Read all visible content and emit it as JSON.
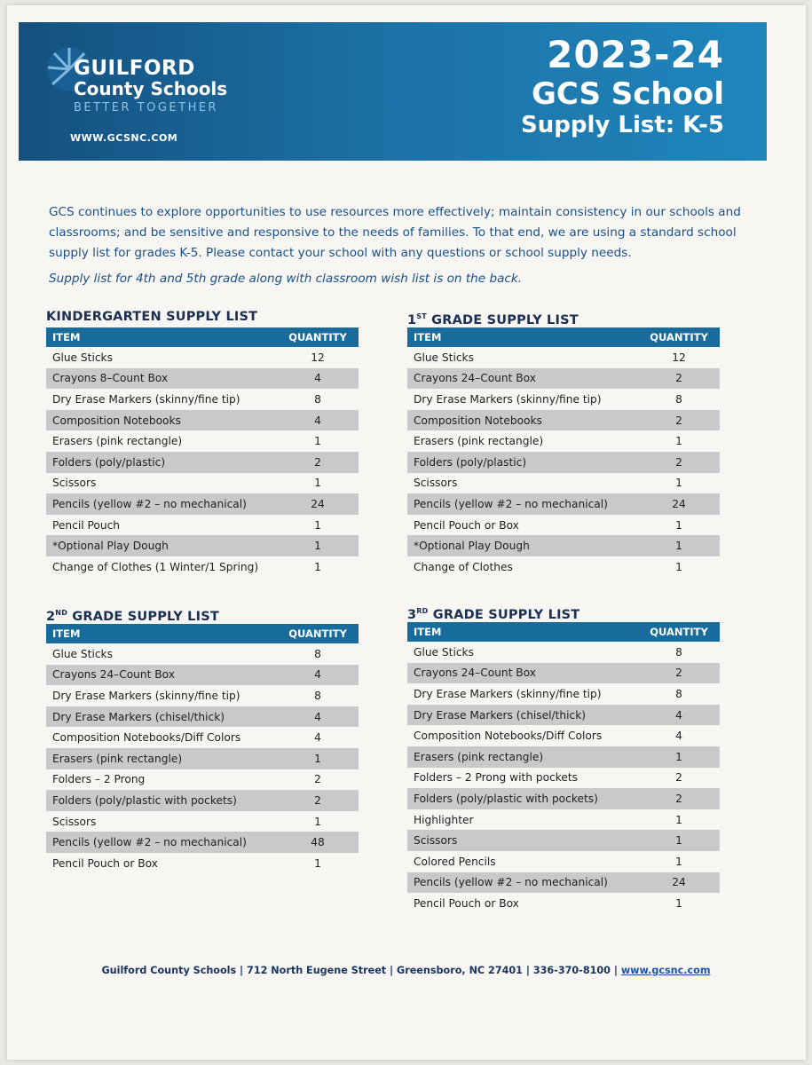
{
  "header": {
    "logo_line1": "GUILFORD",
    "logo_line2": "County Schools",
    "logo_tagline": "BETTER TOGETHER",
    "website": "WWW.GCSNC.COM",
    "title_line1": "2023-24",
    "title_line2": "GCS School",
    "title_line3": "Supply List: K-5",
    "brand_color": "#1c6fa3"
  },
  "intro_text": "GCS continues to explore opportunities to use resources more effectively; maintain consistency in our schools and classrooms; and be sensitive and responsive to the needs of families. To that end, we are using a standard school supply list for grades K-5.  Please contact your school with any questions or school supply needs.",
  "intro_note": "Supply list for 4th and 5th grade along with classroom wish list is on the back.",
  "col_item": "ITEM",
  "col_quantity": "QUANTITY",
  "lists": [
    {
      "title": "KINDERGARTEN SUPPLY LIST",
      "rows": [
        {
          "item": "Glue Sticks",
          "qty": "12"
        },
        {
          "item": "Crayons 8–Count Box",
          "qty": "4"
        },
        {
          "item": "Dry Erase Markers (skinny/fine tip)",
          "qty": "8"
        },
        {
          "item": "Composition Notebooks",
          "qty": "4"
        },
        {
          "item": "Erasers (pink rectangle)",
          "qty": "1"
        },
        {
          "item": "Folders (poly/plastic)",
          "qty": "2"
        },
        {
          "item": "Scissors",
          "qty": "1"
        },
        {
          "item": "Pencils (yellow #2 – no mechanical)",
          "qty": "24"
        },
        {
          "item": "Pencil Pouch",
          "qty": "1"
        },
        {
          "item": "*Optional Play Dough",
          "qty": "1"
        },
        {
          "item": "Change of Clothes (1 Winter/1 Spring)",
          "qty": "1"
        }
      ]
    },
    {
      "title_num": "1",
      "title_sup": "ST",
      "title_rest": " GRADE SUPPLY LIST",
      "rows": [
        {
          "item": "Glue Sticks",
          "qty": "12"
        },
        {
          "item": "Crayons 24–Count Box",
          "qty": "2"
        },
        {
          "item": "Dry Erase Markers (skinny/fine tip)",
          "qty": "8"
        },
        {
          "item": "Composition Notebooks",
          "qty": "2"
        },
        {
          "item": "Erasers (pink rectangle)",
          "qty": "1"
        },
        {
          "item": "Folders (poly/plastic)",
          "qty": "2"
        },
        {
          "item": "Scissors",
          "qty": "1"
        },
        {
          "item": "Pencils (yellow #2 – no mechanical)",
          "qty": "24"
        },
        {
          "item": "Pencil Pouch or Box",
          "qty": "1"
        },
        {
          "item": "*Optional Play Dough",
          "qty": "1"
        },
        {
          "item": "Change of Clothes",
          "qty": "1"
        }
      ]
    },
    {
      "title_num": "2",
      "title_sup": "ND",
      "title_rest": " GRADE SUPPLY LIST",
      "rows": [
        {
          "item": "Glue Sticks",
          "qty": "8"
        },
        {
          "item": "Crayons 24–Count Box",
          "qty": "4"
        },
        {
          "item": "Dry Erase Markers (skinny/fine tip)",
          "qty": "8"
        },
        {
          "item": "Dry Erase Markers (chisel/thick)",
          "qty": "4"
        },
        {
          "item": "Composition Notebooks/Diff Colors",
          "qty": "4"
        },
        {
          "item": "Erasers (pink rectangle)",
          "qty": "1"
        },
        {
          "item": "Folders – 2 Prong",
          "qty": "2"
        },
        {
          "item": "Folders (poly/plastic with pockets)",
          "qty": "2"
        },
        {
          "item": "Scissors",
          "qty": "1"
        },
        {
          "item": "Pencils (yellow #2 – no mechanical)",
          "qty": "48"
        },
        {
          "item": "Pencil Pouch or Box",
          "qty": "1"
        }
      ]
    },
    {
      "title_num": "3",
      "title_sup": "RD",
      "title_rest": " GRADE SUPPLY LIST",
      "rows": [
        {
          "item": "Glue Sticks",
          "qty": "8"
        },
        {
          "item": "Crayons 24–Count Box",
          "qty": "2"
        },
        {
          "item": "Dry Erase Markers (skinny/fine tip)",
          "qty": "8"
        },
        {
          "item": "Dry Erase Markers (chisel/thick)",
          "qty": "4"
        },
        {
          "item": "Composition Notebooks/Diff Colors",
          "qty": "4"
        },
        {
          "item": "Erasers (pink rectangle)",
          "qty": "1"
        },
        {
          "item": "Folders – 2 Prong with pockets",
          "qty": "2"
        },
        {
          "item": "Folders (poly/plastic with pockets)",
          "qty": "2"
        },
        {
          "item": "Highlighter",
          "qty": "1"
        },
        {
          "item": "Scissors",
          "qty": "1"
        },
        {
          "item": "Colored Pencils",
          "qty": "1"
        },
        {
          "item": "Pencils (yellow #2 – no mechanical)",
          "qty": "24"
        },
        {
          "item": "Pencil Pouch or Box",
          "qty": "1"
        }
      ]
    }
  ],
  "footer": {
    "text": "Guilford County Schools | 712 North Eugene Street | Greensboro, NC 27401 | 336-370-8100 | ",
    "link": "www.gcsnc.com"
  }
}
